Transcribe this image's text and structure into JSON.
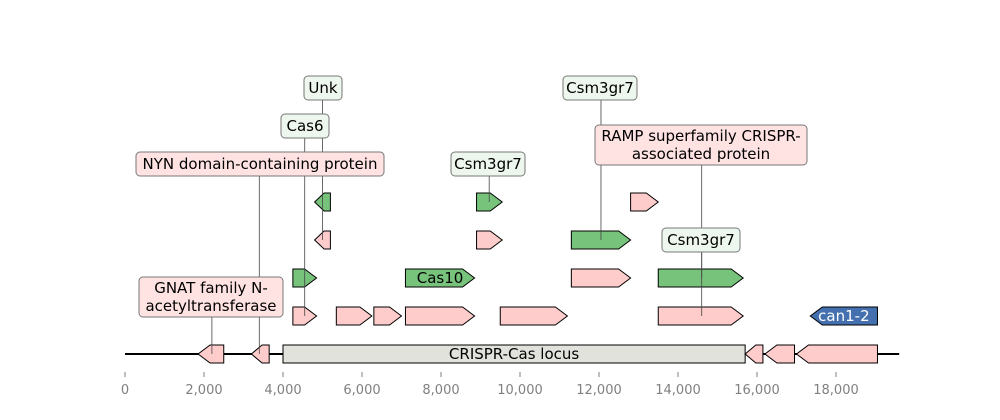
{
  "map": {
    "locus_label": "CRISPR-Cas locus",
    "axis": {
      "min": 0,
      "max": 20000,
      "ticks": [
        0,
        2000,
        4000,
        6000,
        8000,
        10000,
        12000,
        14000,
        16000,
        18000
      ],
      "tick_labels": [
        "0",
        "2,000",
        "4,000",
        "6,000",
        "8,000",
        "10,000",
        "12,000",
        "14,000",
        "16,000",
        "18,000"
      ]
    },
    "colors": {
      "pink": "#ffcccc",
      "green": "#77c37b",
      "blue": "#4470b0",
      "grey_box": "#e2e2dc",
      "green_label_bg": "#eef7ee",
      "pink_label_bg": "#ffe3e3"
    },
    "locus_region": {
      "start": 4000,
      "end": 15700
    },
    "backbone": {
      "start": 0,
      "end": 19600
    },
    "features": [
      {
        "name": "f1",
        "start": 1850,
        "end": 2500,
        "strand": -1,
        "level": 0,
        "color": "pink"
      },
      {
        "name": "f2",
        "start": 3200,
        "end": 3650,
        "strand": -1,
        "level": 0,
        "color": "pink"
      },
      {
        "name": "f3",
        "start": 15700,
        "end": 16150,
        "strand": -1,
        "level": 0,
        "color": "pink"
      },
      {
        "name": "f4",
        "start": 16200,
        "end": 16950,
        "strand": -1,
        "level": 0,
        "color": "pink"
      },
      {
        "name": "f5",
        "start": 17000,
        "end": 19050,
        "strand": -1,
        "level": 0,
        "color": "pink"
      },
      {
        "name": "f6",
        "start": 4250,
        "end": 4850,
        "strand": 1,
        "level": 1,
        "color": "pink"
      },
      {
        "name": "f7",
        "start": 5350,
        "end": 6250,
        "strand": 1,
        "level": 1,
        "color": "pink"
      },
      {
        "name": "f8",
        "start": 6300,
        "end": 7000,
        "strand": 1,
        "level": 1,
        "color": "pink"
      },
      {
        "name": "f9",
        "start": 7100,
        "end": 8850,
        "strand": 1,
        "level": 1,
        "color": "pink"
      },
      {
        "name": "f10",
        "start": 9500,
        "end": 11200,
        "strand": 1,
        "level": 1,
        "color": "pink"
      },
      {
        "name": "f11",
        "start": 13500,
        "end": 15650,
        "strand": 1,
        "level": 1,
        "color": "pink"
      },
      {
        "name": "can1-2",
        "start": 17350,
        "end": 19050,
        "strand": -1,
        "level": 1,
        "color": "blue",
        "label": "can1-2"
      },
      {
        "name": "f12",
        "start": 4250,
        "end": 4850,
        "strand": 1,
        "level": 2,
        "color": "green"
      },
      {
        "name": "Cas10",
        "start": 7100,
        "end": 8850,
        "strand": 1,
        "level": 2,
        "color": "green",
        "label": "Cas10"
      },
      {
        "name": "f13",
        "start": 11300,
        "end": 12800,
        "strand": 1,
        "level": 2,
        "color": "pink"
      },
      {
        "name": "f14",
        "start": 13500,
        "end": 15650,
        "strand": 1,
        "level": 2,
        "color": "green"
      },
      {
        "name": "f15",
        "start": 4800,
        "end": 5200,
        "strand": -1,
        "level": 3,
        "color": "pink"
      },
      {
        "name": "f16",
        "start": 8900,
        "end": 9550,
        "strand": 1,
        "level": 3,
        "color": "pink"
      },
      {
        "name": "f17",
        "start": 11300,
        "end": 12800,
        "strand": 1,
        "level": 3,
        "color": "green"
      },
      {
        "name": "f18",
        "start": 4800,
        "end": 5200,
        "strand": -1,
        "level": 4,
        "color": "green"
      },
      {
        "name": "f19",
        "start": 8900,
        "end": 9550,
        "strand": 1,
        "level": 4,
        "color": "green"
      },
      {
        "name": "f20",
        "start": 12800,
        "end": 13500,
        "strand": 1,
        "level": 4,
        "color": "pink"
      }
    ],
    "annotations": [
      {
        "text": "GNAT family N-\nacetyltransferase",
        "x": 2200,
        "line_to": "gene-f1",
        "label_style": "pink",
        "label_pos": "ann-gnat"
      },
      {
        "text": "NYN domain-containing protein",
        "x": 3400,
        "line_to": "gene-f2",
        "label_style": "pink",
        "label_pos": "ann-nyn"
      },
      {
        "text": "Cas6",
        "x": 4550,
        "line_to": "gene-f6",
        "label_style": "green",
        "label_pos": "ann-cas6"
      },
      {
        "text": "Unk",
        "x": 5000,
        "line_to": "gene-f15",
        "label_style": "green",
        "label_pos": "ann-unk"
      },
      {
        "text": "Csm3gr7",
        "x": 9220,
        "line_to": "gene-f19",
        "label_style": "green",
        "label_pos": "ann-csm3a"
      },
      {
        "text": "Csm3gr7",
        "x": 12050,
        "line_to": "gene-f17",
        "label_style": "green",
        "label_pos": "ann-csm3b"
      },
      {
        "text": "RAMP superfamily CRISPR-\nassociated protein",
        "x": 14600,
        "line_to": "gene-f14",
        "label_style": "pink",
        "label_pos": "ann-ramp"
      },
      {
        "text": "Csm3gr7",
        "x": 14600,
        "line_to": "gene-f11",
        "label_style": "green",
        "label_pos": "ann-csm3c"
      }
    ]
  }
}
